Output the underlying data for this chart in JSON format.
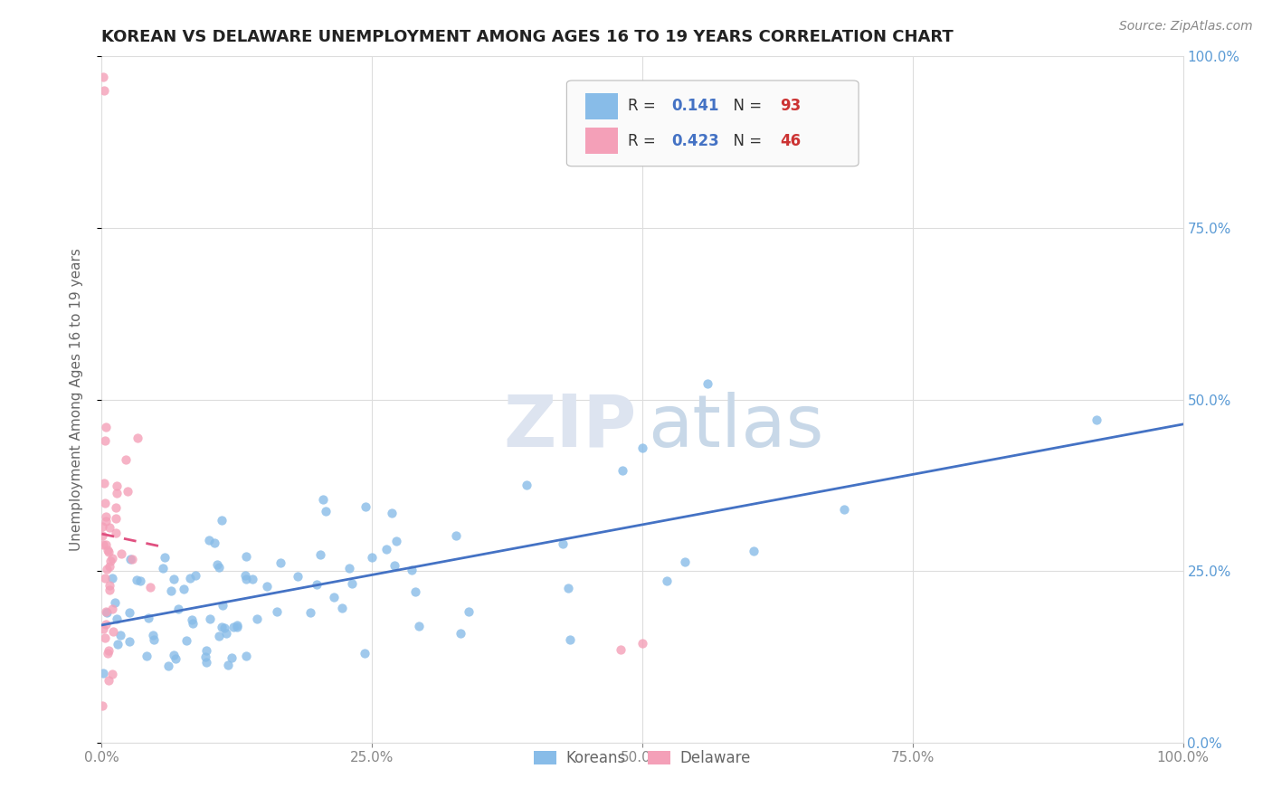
{
  "title": "KOREAN VS DELAWARE UNEMPLOYMENT AMONG AGES 16 TO 19 YEARS CORRELATION CHART",
  "source": "Source: ZipAtlas.com",
  "ylabel": "Unemployment Among Ages 16 to 19 years",
  "xlim": [
    0,
    1.0
  ],
  "ylim": [
    0,
    1.0
  ],
  "xticks": [
    0.0,
    0.25,
    0.5,
    0.75,
    1.0
  ],
  "xticklabels": [
    "0.0%",
    "25.0%",
    "50.0%",
    "75.0%",
    "100.0%"
  ],
  "yticks": [
    0.0,
    0.25,
    0.5,
    0.75,
    1.0
  ],
  "right_yticklabels": [
    "0.0%",
    "25.0%",
    "50.0%",
    "75.0%",
    "100.0%"
  ],
  "korean_color": "#88bce8",
  "delaware_color": "#f4a0b8",
  "korean_line_color": "#4472c4",
  "delaware_line_color": "#e05080",
  "korean_R": 0.141,
  "korean_N": 93,
  "delaware_R": 0.423,
  "delaware_N": 46,
  "title_color": "#222222",
  "source_color": "#888888",
  "ylabel_color": "#666666",
  "right_axis_color": "#5b9bd5",
  "tick_color": "#888888",
  "grid_color": "#dddddd",
  "legend_text_color": "#333333",
  "legend_value_color": "#4472c4",
  "legend_n_color": "#cc3333",
  "watermark_zip_color": "#dde4f0",
  "watermark_atlas_color": "#c8d8e8",
  "bottom_legend_color": "#666666"
}
